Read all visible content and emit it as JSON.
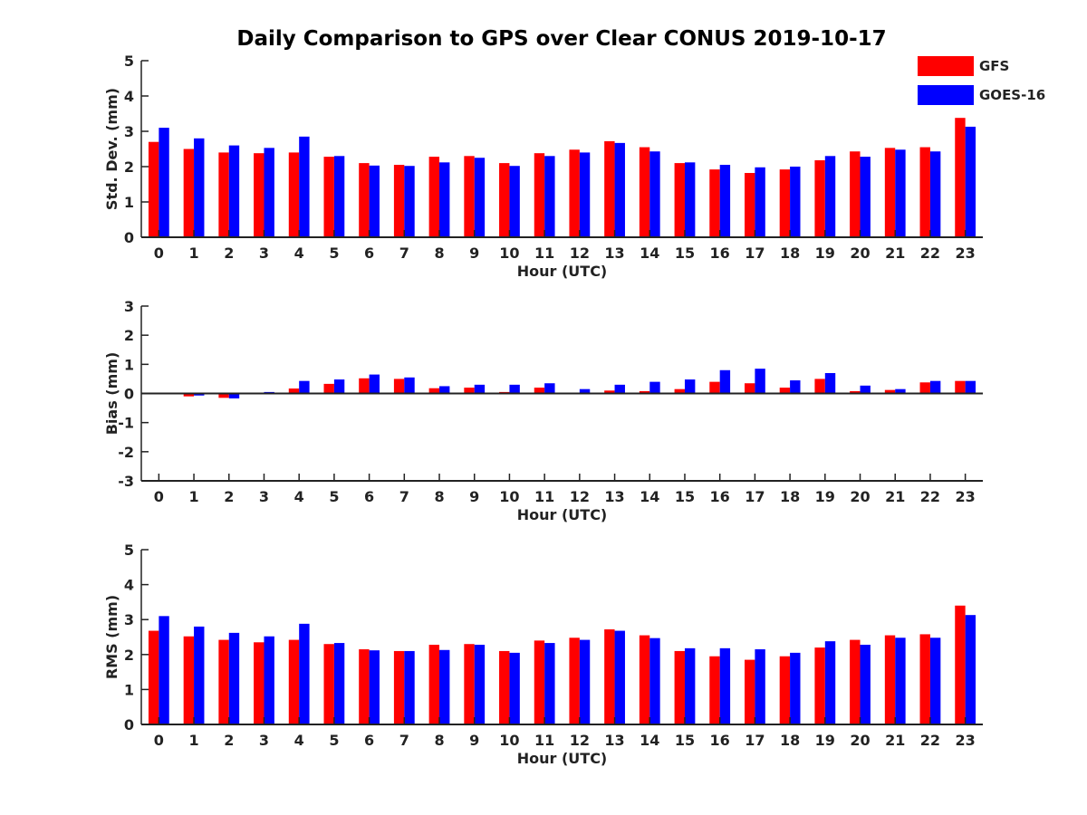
{
  "chart_data": {
    "type": "bar",
    "title": "Daily Comparison to GPS over Clear CONUS 2019-10-17",
    "legend": {
      "placement": "top-right",
      "entries": [
        {
          "name": "GFS",
          "color": "#ff0000"
        },
        {
          "name": "GOES-16",
          "color": "#0000ff"
        }
      ]
    },
    "categories": [
      "0",
      "1",
      "2",
      "3",
      "4",
      "5",
      "6",
      "7",
      "8",
      "9",
      "10",
      "11",
      "12",
      "13",
      "14",
      "15",
      "16",
      "17",
      "18",
      "19",
      "20",
      "21",
      "22",
      "23"
    ],
    "panels": [
      {
        "ylabel": "Std. Dev. (mm)",
        "xlabel": "Hour (UTC)",
        "ylim": [
          0,
          5
        ],
        "yticks": [
          0,
          1,
          2,
          3,
          4,
          5
        ],
        "series": [
          {
            "name": "GFS",
            "color": "#ff0000",
            "values": [
              2.7,
              2.5,
              2.4,
              2.38,
              2.4,
              2.28,
              2.1,
              2.05,
              2.28,
              2.3,
              2.1,
              2.38,
              2.48,
              2.72,
              2.55,
              2.1,
              1.92,
              1.82,
              1.92,
              2.18,
              2.43,
              2.53,
              2.55,
              3.38
            ]
          },
          {
            "name": "GOES-16",
            "color": "#0000ff",
            "values": [
              3.1,
              2.8,
              2.6,
              2.53,
              2.85,
              2.3,
              2.03,
              2.02,
              2.12,
              2.25,
              2.02,
              2.3,
              2.4,
              2.67,
              2.43,
              2.12,
              2.05,
              1.98,
              2.0,
              2.3,
              2.28,
              2.48,
              2.43,
              3.13
            ]
          }
        ]
      },
      {
        "ylabel": "Bias (mm)",
        "xlabel": "Hour (UTC)",
        "ylim": [
          -3,
          3
        ],
        "yticks": [
          -3,
          -2,
          -1,
          0,
          1,
          2,
          3
        ],
        "series": [
          {
            "name": "GFS",
            "color": "#ff0000",
            "values": [
              -0.02,
              -0.1,
              -0.15,
              0.0,
              0.17,
              0.33,
              0.52,
              0.5,
              0.18,
              0.2,
              0.05,
              0.2,
              0.0,
              0.1,
              0.08,
              0.15,
              0.4,
              0.35,
              0.2,
              0.5,
              0.08,
              0.12,
              0.38,
              0.43
            ]
          },
          {
            "name": "GOES-16",
            "color": "#0000ff",
            "values": [
              0.0,
              -0.07,
              -0.17,
              0.05,
              0.43,
              0.48,
              0.65,
              0.55,
              0.25,
              0.3,
              0.3,
              0.35,
              0.15,
              0.3,
              0.4,
              0.48,
              0.8,
              0.85,
              0.45,
              0.7,
              0.27,
              0.15,
              0.43,
              0.43
            ]
          }
        ]
      },
      {
        "ylabel": "RMS (mm)",
        "xlabel": "Hour (UTC)",
        "ylim": [
          0,
          5
        ],
        "yticks": [
          0,
          1,
          2,
          3,
          4,
          5
        ],
        "series": [
          {
            "name": "GFS",
            "color": "#ff0000",
            "values": [
              2.68,
              2.52,
              2.42,
              2.35,
              2.42,
              2.3,
              2.15,
              2.1,
              2.28,
              2.3,
              2.1,
              2.4,
              2.48,
              2.72,
              2.55,
              2.1,
              1.95,
              1.85,
              1.95,
              2.2,
              2.42,
              2.55,
              2.58,
              3.4
            ]
          },
          {
            "name": "GOES-16",
            "color": "#0000ff",
            "values": [
              3.1,
              2.8,
              2.62,
              2.52,
              2.88,
              2.33,
              2.12,
              2.1,
              2.13,
              2.28,
              2.05,
              2.33,
              2.42,
              2.68,
              2.47,
              2.18,
              2.18,
              2.15,
              2.05,
              2.38,
              2.28,
              2.48,
              2.48,
              3.13
            ]
          }
        ]
      }
    ]
  }
}
